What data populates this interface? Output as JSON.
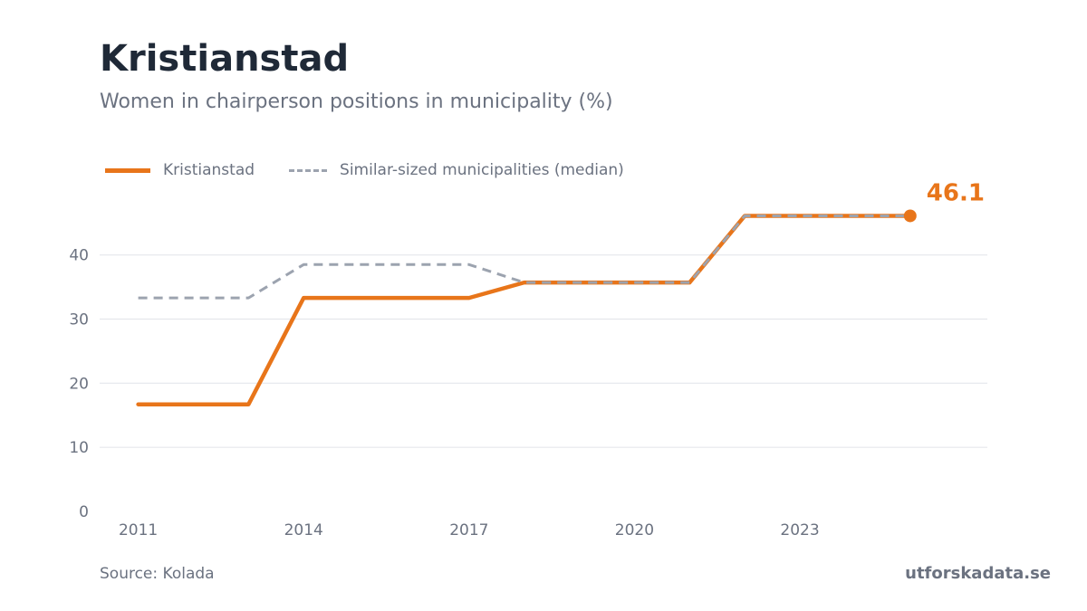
{
  "header": {
    "title": "Kristianstad",
    "subtitle": "Women in chairperson positions in municipality (%)"
  },
  "footer": {
    "source": "Source: Kolada",
    "brand": "utforskadata.se"
  },
  "colors": {
    "primary": "#e8751a",
    "median": "#9ca3af",
    "grid": "#e5e7eb",
    "axis_text": "#6b7280"
  },
  "chart_data": {
    "type": "line",
    "x": [
      2011,
      2012,
      2013,
      2014,
      2015,
      2016,
      2017,
      2018,
      2019,
      2020,
      2021,
      2022,
      2023,
      2024,
      2025
    ],
    "series": [
      {
        "name": "Kristianstad",
        "style": "solid",
        "values": [
          16.7,
          16.7,
          16.7,
          33.3,
          33.3,
          33.3,
          33.3,
          35.7,
          35.7,
          35.7,
          35.7,
          46.1,
          46.1,
          46.1,
          46.1
        ]
      },
      {
        "name": "Similar-sized municipalities (median)",
        "style": "dashed",
        "values": [
          33.3,
          33.3,
          33.3,
          38.5,
          38.5,
          38.5,
          38.5,
          35.7,
          35.7,
          35.7,
          35.7,
          46.1,
          46.1,
          46.1,
          46.1
        ]
      }
    ],
    "x_ticks": [
      2011,
      2014,
      2017,
      2020,
      2023
    ],
    "y_ticks": [
      0,
      10,
      20,
      30,
      40
    ],
    "ylim": [
      0,
      48
    ],
    "xlim": [
      2010.3,
      2026.4
    ],
    "grid": true,
    "legend_position": "top-left",
    "end_label": "46.1"
  }
}
